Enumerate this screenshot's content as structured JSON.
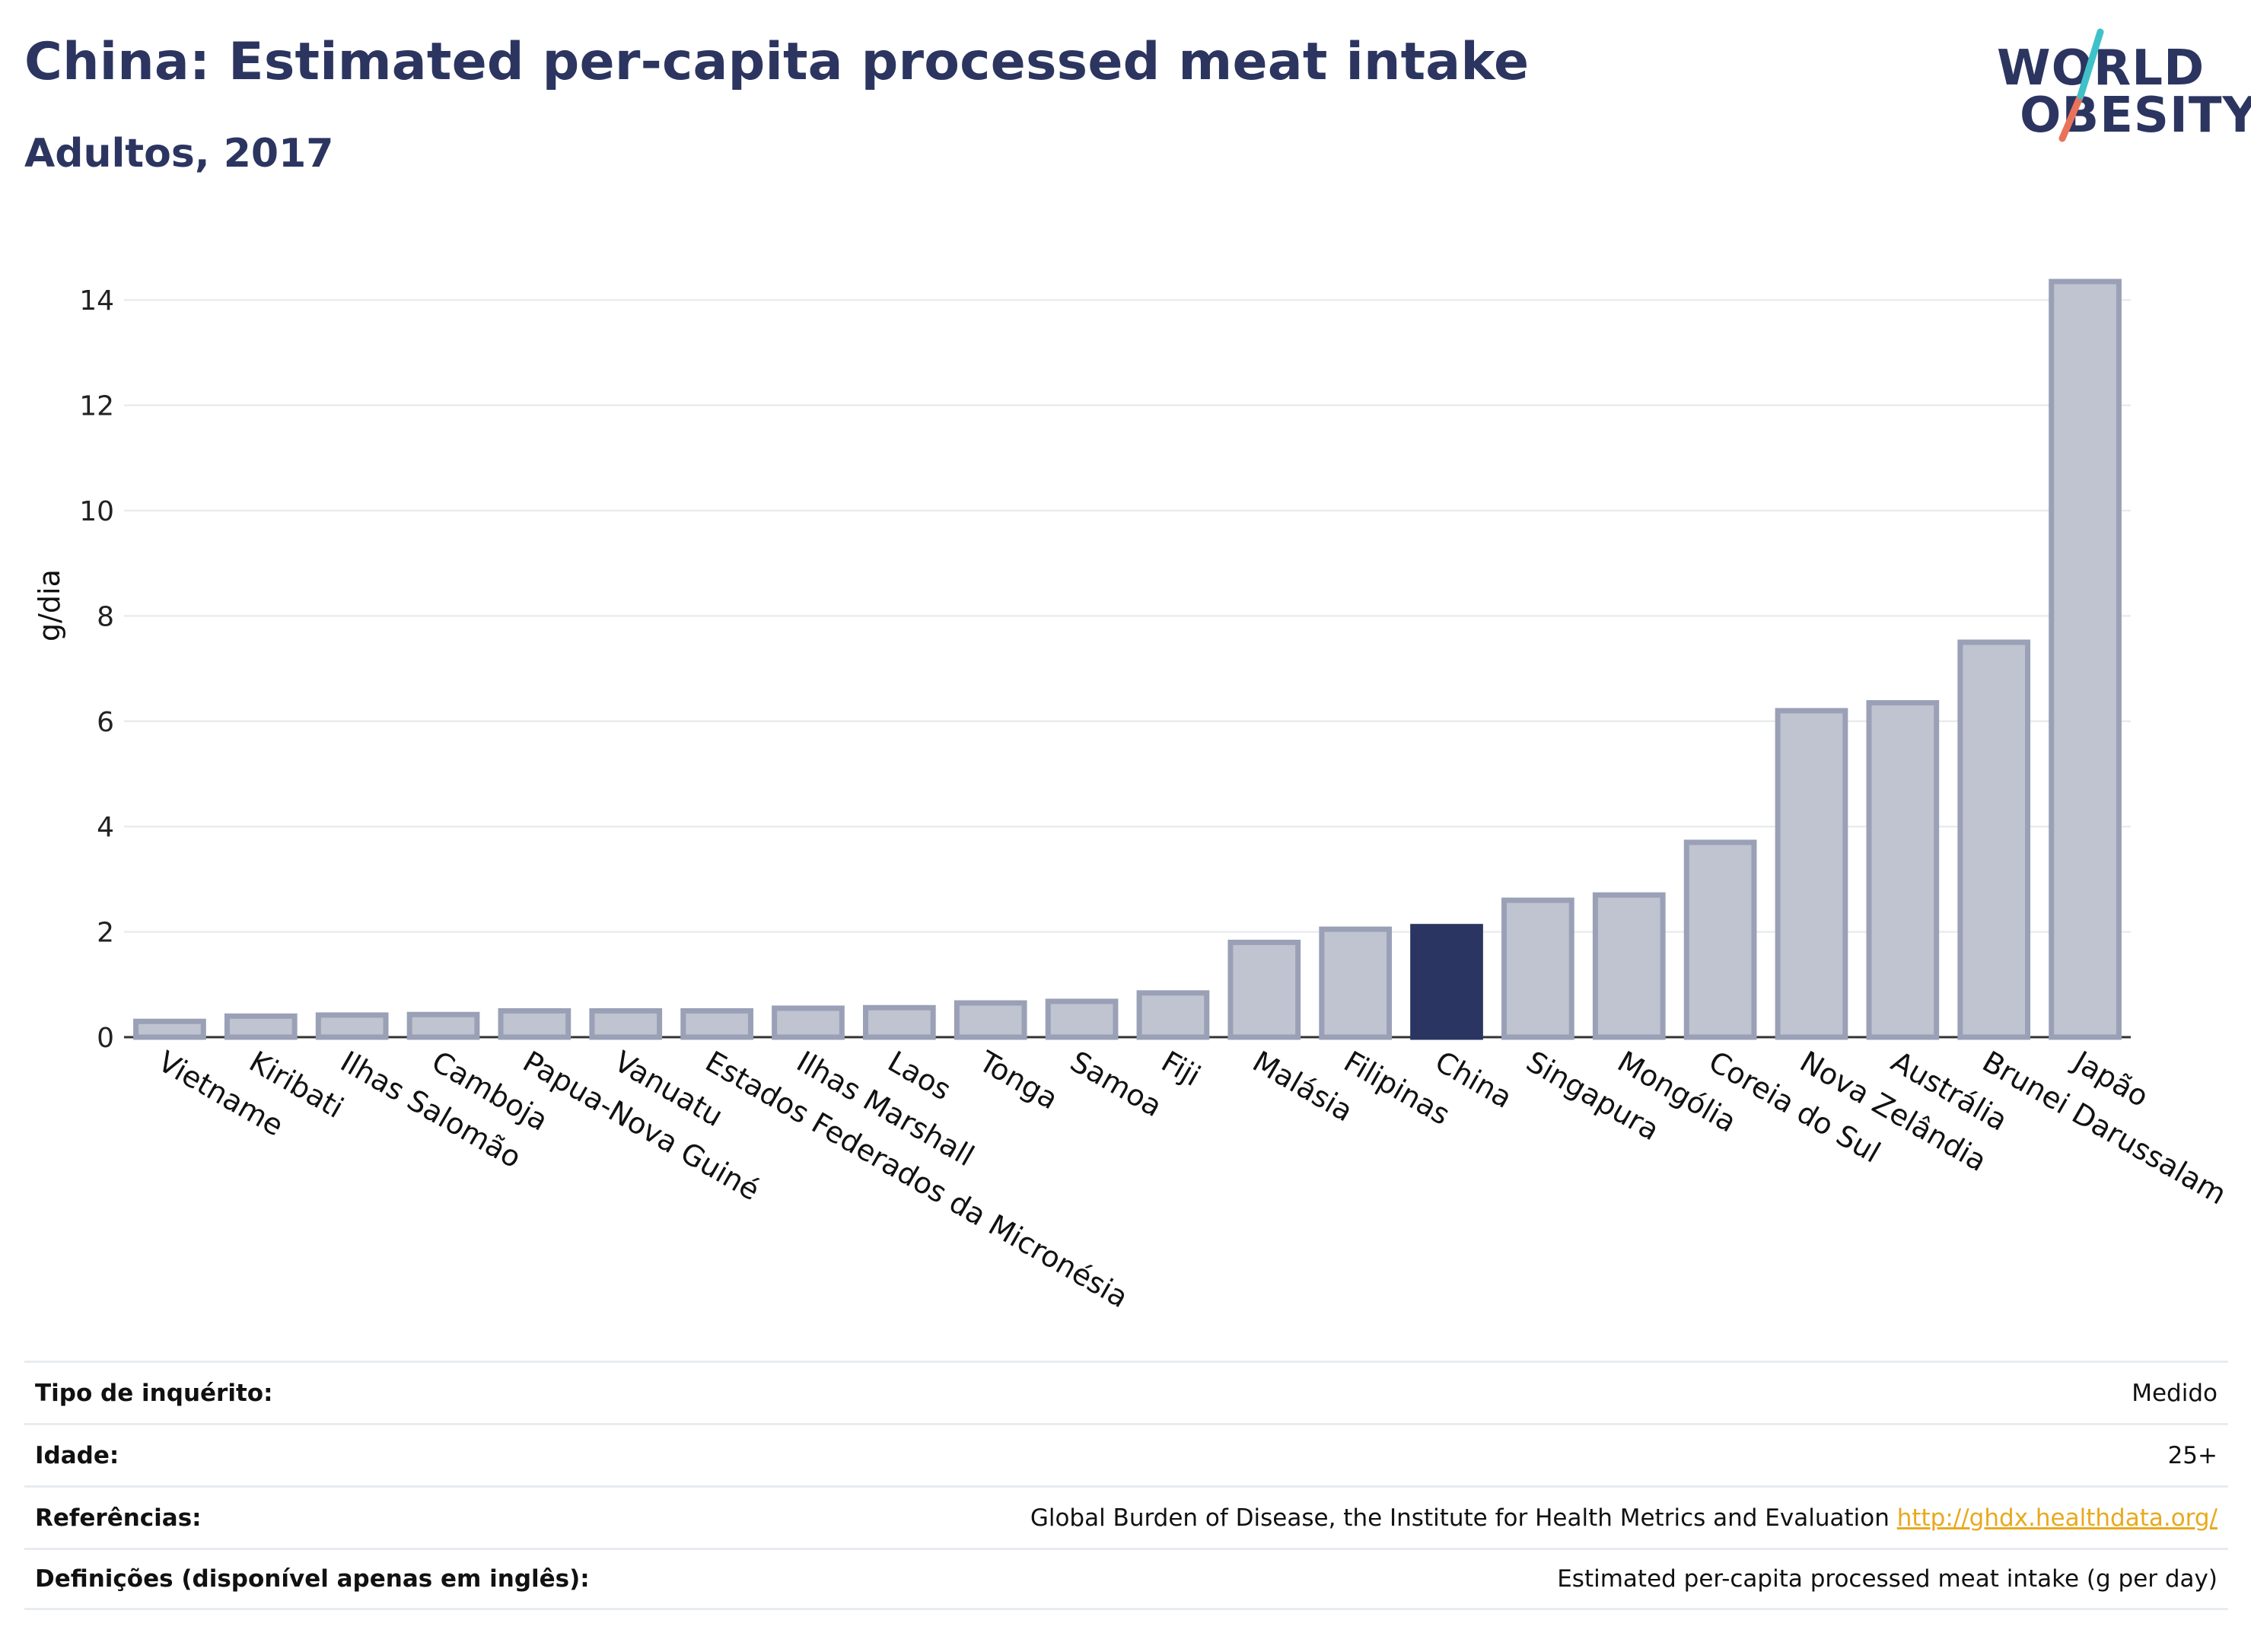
{
  "header": {
    "title": "China: Estimated per-capita processed meat intake",
    "subtitle": "Adultos, 2017"
  },
  "logo": {
    "line1": "WORLD",
    "line2": "OBESITY",
    "accent_colors": [
      "#3fc1c9",
      "#e8735a"
    ]
  },
  "chart_data": {
    "type": "bar",
    "ylabel": "g/dia",
    "xlabel": "",
    "ylim": [
      0,
      15
    ],
    "yticks": [
      0,
      2,
      4,
      6,
      8,
      10,
      12,
      14
    ],
    "grid": true,
    "categories": [
      "Vietname",
      "Kiribati",
      "Ilhas Salomão",
      "Camboja",
      "Papua-Nova Guiné",
      "Vanuatu",
      "Estados Federados da Micronésia",
      "Ilhas Marshall",
      "Laos",
      "Tonga",
      "Samoa",
      "Fiji",
      "Malásia",
      "Filipinas",
      "China",
      "Singapura",
      "Mongólia",
      "Coreia do Sul",
      "Nova Zelândia",
      "Austrália",
      "Brunei Darussalam",
      "Japão"
    ],
    "values": [
      0.3,
      0.4,
      0.42,
      0.43,
      0.5,
      0.5,
      0.5,
      0.55,
      0.56,
      0.65,
      0.68,
      0.84,
      1.8,
      2.05,
      2.1,
      2.6,
      2.7,
      3.7,
      6.2,
      6.35,
      7.5,
      14.35
    ],
    "highlight": "China",
    "colors": {
      "bar_fill": "#c0c3d0",
      "bar_stroke": "#9aa0b6",
      "highlight": "#2a3562",
      "grid": "#e9ebef",
      "axis": "#333333"
    }
  },
  "meta": {
    "rows": [
      {
        "label": "Tipo de inquérito:",
        "value": "Medido"
      },
      {
        "label": "Idade:",
        "value": "25+"
      },
      {
        "label": "Referências:",
        "value": "Global Burden of Disease, the Institute for Health Metrics and Evaluation ",
        "link": "http://ghdx.healthdata.org/"
      },
      {
        "label": "Definições (disponível apenas em inglês):",
        "value": "Estimated per-capita processed meat intake (g per day)"
      }
    ]
  }
}
